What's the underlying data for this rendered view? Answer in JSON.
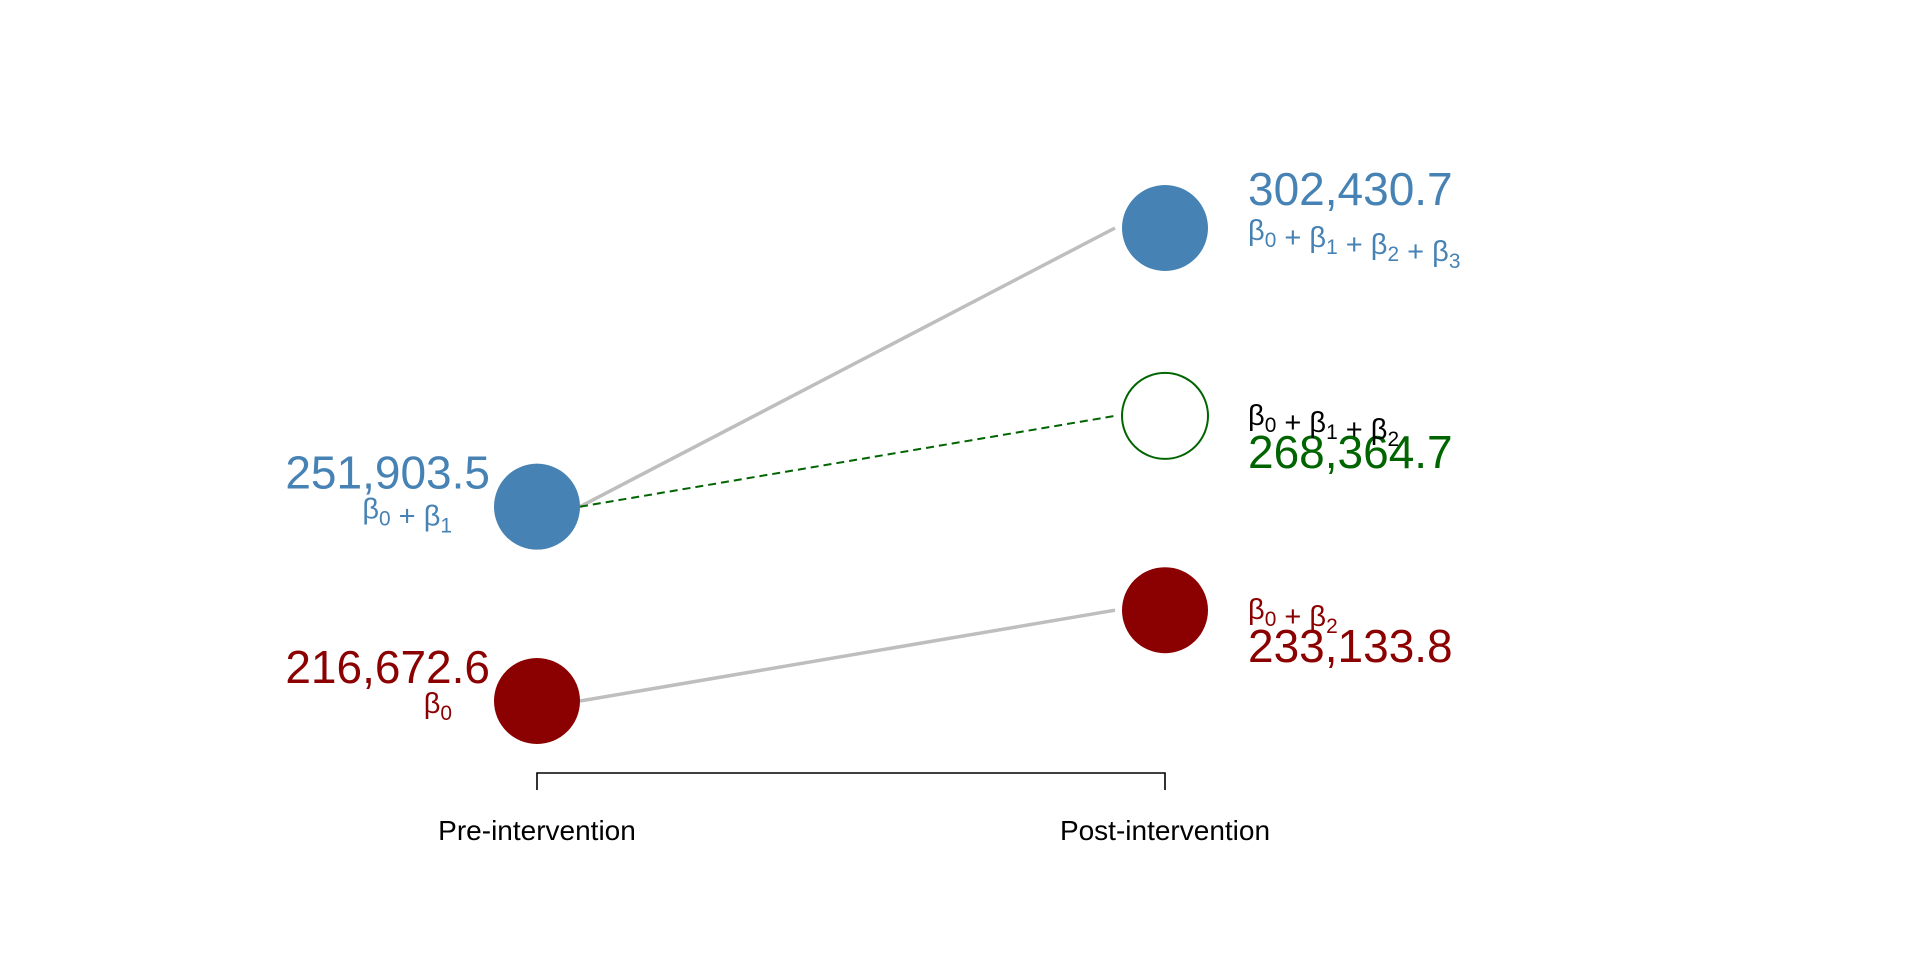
{
  "chart_data": {
    "type": "scatter",
    "x_categories": [
      "Pre-intervention",
      "Post-intervention"
    ],
    "colors": {
      "treated": "#4682b4",
      "control": "#8b0000",
      "counterfactual": "#006400",
      "connector": "#bebebe",
      "axis": "#000000"
    },
    "points": [
      {
        "id": "control-pre",
        "x": "Pre-intervention",
        "y": 216672.6,
        "label": "216,672.6",
        "formula": "β0",
        "color": "#8b0000",
        "filled": true,
        "label_side": "left",
        "formula_first": false
      },
      {
        "id": "treated-pre",
        "x": "Pre-intervention",
        "y": 251903.5,
        "label": "251,903.5",
        "formula": "β0 + β1",
        "color": "#4682b4",
        "filled": true,
        "label_side": "left",
        "formula_first": false
      },
      {
        "id": "control-post",
        "x": "Post-intervention",
        "y": 233133.8,
        "label": "233,133.8",
        "formula": "β0 + β2",
        "color": "#8b0000",
        "filled": true,
        "label_side": "right",
        "formula_first": true
      },
      {
        "id": "counterfactual-post",
        "x": "Post-intervention",
        "y": 268364.7,
        "label": "268,364.7",
        "formula": "β0 + β1 + β2",
        "color": "#006400",
        "formula_color": "#000000",
        "filled": false,
        "label_side": "right",
        "formula_first": true
      },
      {
        "id": "treated-post",
        "x": "Post-intervention",
        "y": 302430.7,
        "label": "302,430.7",
        "formula": "β0 + β1 + β2 + β3",
        "color": "#4682b4",
        "filled": true,
        "label_side": "right",
        "formula_first": false
      }
    ],
    "segments": [
      {
        "id": "control-line",
        "from": "control-pre",
        "to": "control-post",
        "style": "solid",
        "color": "#bebebe"
      },
      {
        "id": "treated-line",
        "from": "treated-pre",
        "to": "treated-post",
        "style": "solid",
        "color": "#bebebe"
      },
      {
        "id": "counterfactual-line",
        "from": "treated-pre",
        "to": "counterfactual-post",
        "style": "dashed",
        "color": "#006400"
      }
    ],
    "grid": false,
    "legend": "none"
  }
}
